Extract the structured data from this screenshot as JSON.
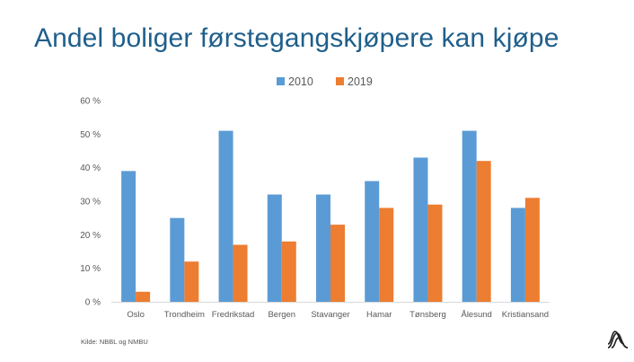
{
  "slide": {
    "title": "Andel boliger førstegangskjøpere kan kjøpe",
    "source": "Kilde: NBBL og NMBU"
  },
  "colors": {
    "title": "#1f5f8b",
    "series_2010": "#5b9bd5",
    "series_2019": "#ed7d31",
    "axis_text": "#595959",
    "grid": "#d9d9d9"
  },
  "icons": {
    "logo": "nbbl-logo-icon"
  },
  "chart_data": {
    "type": "bar",
    "title": "",
    "xlabel": "",
    "ylabel": "",
    "categories": [
      "Oslo",
      "Trondheim",
      "Fredrikstad",
      "Bergen",
      "Stavanger",
      "Hamar",
      "Tønsberg",
      "Ålesund",
      "Kristiansand"
    ],
    "series": [
      {
        "name": "2010",
        "values": [
          39,
          25,
          51,
          32,
          32,
          36,
          43,
          51,
          28
        ]
      },
      {
        "name": "2019",
        "values": [
          3,
          12,
          17,
          18,
          23,
          28,
          29,
          42,
          31
        ]
      }
    ],
    "yticks": [
      "0 %",
      "10 %",
      "20 %",
      "30 %",
      "40 %",
      "50 %",
      "60 %"
    ],
    "ylim": [
      0,
      60
    ],
    "grid": false,
    "legend": "top-center"
  }
}
